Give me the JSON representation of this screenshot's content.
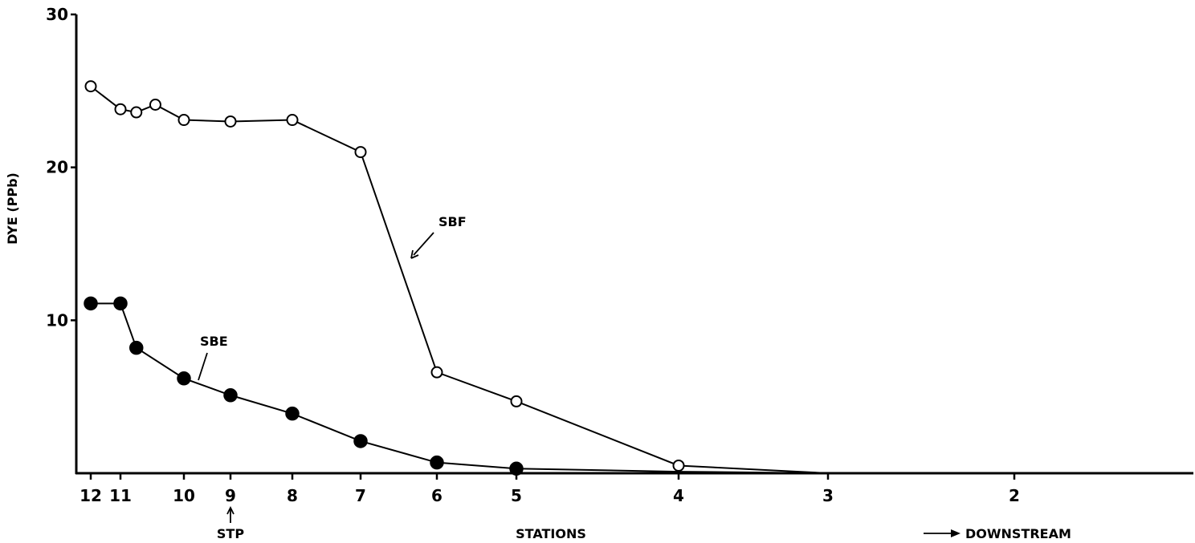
{
  "chart_data": {
    "type": "line",
    "title": "",
    "xlabel": "STATIONS",
    "ylabel": "DYE (PPb)",
    "ylim": [
      0,
      30
    ],
    "yticks": [
      10,
      20,
      30
    ],
    "x_stations": [
      {
        "label": "12",
        "pos": 12
      },
      {
        "label": "11",
        "pos": 11
      },
      {
        "label": "10",
        "pos": 10
      },
      {
        "label": "9",
        "pos": 9
      },
      {
        "label": "8",
        "pos": 8
      },
      {
        "label": "7",
        "pos": 7
      },
      {
        "label": "6",
        "pos": 6
      },
      {
        "label": "5",
        "pos": 5
      },
      {
        "label": "4",
        "pos": 4
      },
      {
        "label": "3",
        "pos": 3
      },
      {
        "label": "2",
        "pos": 2
      }
    ],
    "series": [
      {
        "name": "SBF",
        "marker": "open",
        "points": [
          {
            "x": 12,
            "y": 25.3
          },
          {
            "x": 11,
            "y": 23.8
          },
          {
            "x": 10.75,
            "y": 23.6
          },
          {
            "x": 10.45,
            "y": 24.1
          },
          {
            "x": 10,
            "y": 23.1
          },
          {
            "x": 9,
            "y": 23.0
          },
          {
            "x": 8,
            "y": 23.1
          },
          {
            "x": 7,
            "y": 21.0
          },
          {
            "x": 6,
            "y": 6.6
          },
          {
            "x": 5,
            "y": 4.7
          },
          {
            "x": 4,
            "y": 0.5
          },
          {
            "x": 3,
            "y": 0.0
          },
          {
            "x": 1.5,
            "y": 0.0
          }
        ],
        "marked_count": 11
      },
      {
        "name": "SBE",
        "marker": "filled",
        "points": [
          {
            "x": 12,
            "y": 11.1
          },
          {
            "x": 11,
            "y": 11.1
          },
          {
            "x": 10.75,
            "y": 8.2
          },
          {
            "x": 10,
            "y": 6.2
          },
          {
            "x": 9,
            "y": 5.1
          },
          {
            "x": 8,
            "y": 3.9
          },
          {
            "x": 7,
            "y": 2.1
          },
          {
            "x": 6,
            "y": 0.7
          },
          {
            "x": 5,
            "y": 0.3
          },
          {
            "x": 4,
            "y": 0.1
          },
          {
            "x": 3,
            "y": 0.0
          },
          {
            "x": 1.5,
            "y": 0.0
          }
        ],
        "marked_count": 9
      }
    ],
    "annotations": {
      "stp": "STP",
      "downstream": "DOWNSTREAM"
    },
    "grid": false
  }
}
